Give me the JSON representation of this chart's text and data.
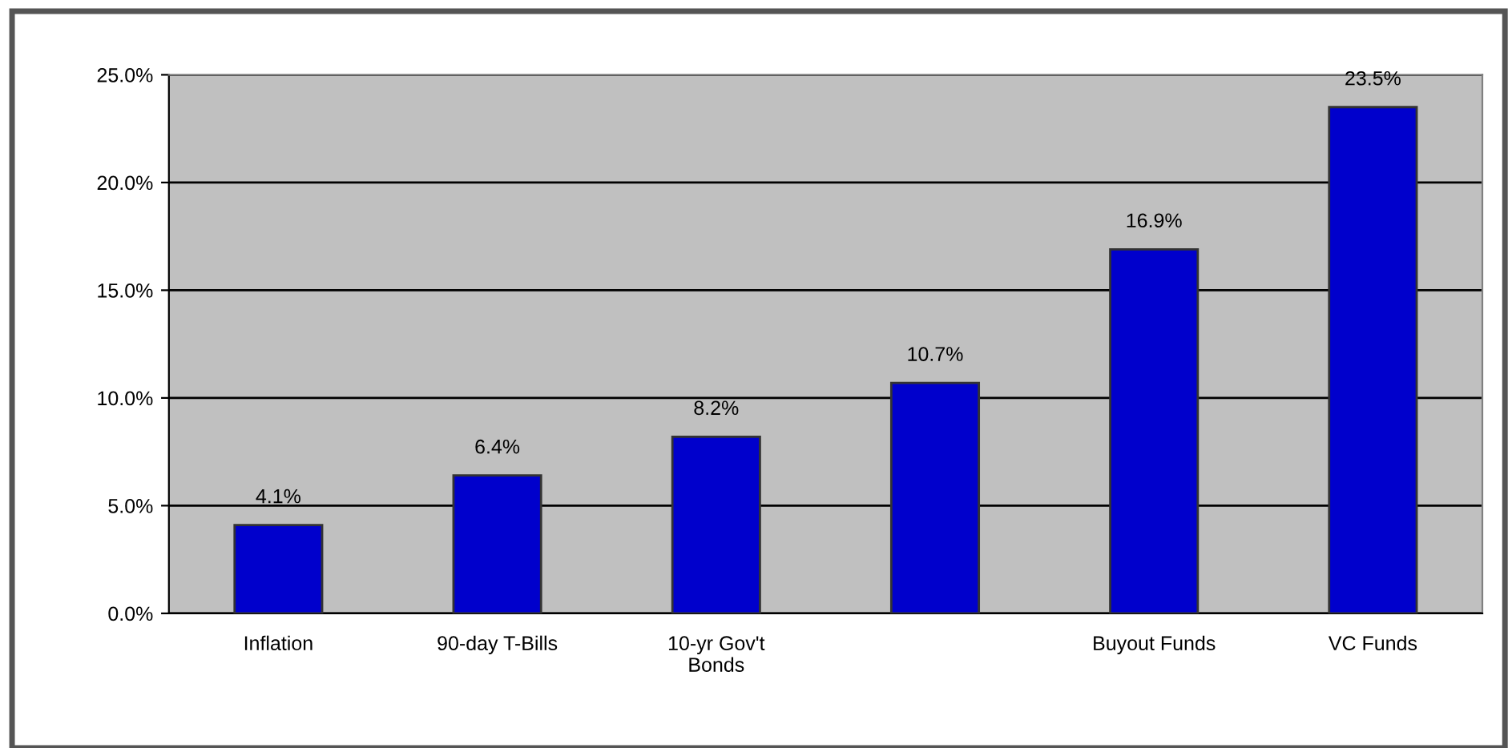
{
  "chart_data": {
    "type": "bar",
    "categories": [
      "Inflation",
      "90-day T-Bills",
      "10-yr Gov't\nBonds",
      null,
      "Buyout Funds",
      "VC Funds"
    ],
    "values": [
      4.1,
      6.4,
      8.2,
      10.7,
      16.9,
      23.5
    ],
    "value_labels": [
      "4.1%",
      "6.4%",
      "8.2%",
      "10.7%",
      "16.9%",
      "23.5%"
    ],
    "color": "#0000cc",
    "ylim": [
      0,
      25
    ],
    "yticks": [
      {
        "value": 0,
        "label": "0.0%"
      },
      {
        "value": 5,
        "label": "5.0%"
      },
      {
        "value": 10,
        "label": "10.0%"
      },
      {
        "value": 15,
        "label": "15.0%"
      },
      {
        "value": 20,
        "label": "20.0%"
      },
      {
        "value": 25,
        "label": "25.0%"
      }
    ],
    "grid": "y",
    "legend": false
  }
}
